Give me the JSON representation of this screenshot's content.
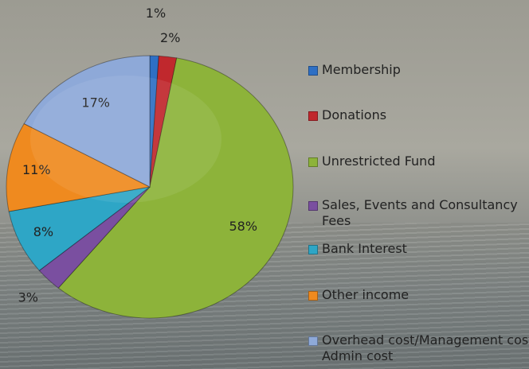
{
  "chart_data": {
    "type": "pie",
    "categories": [
      "Membership",
      "Donations",
      "Unrestricted Fund",
      "Sales, Events and Consultancy Fees",
      "Bank Interest",
      "Other income",
      "Overhead cost/Management cost/ Admin cost"
    ],
    "values": [
      1,
      2,
      58,
      3,
      8,
      11,
      17
    ],
    "value_labels": [
      "1%",
      "2%",
      "58%",
      "3%",
      "8%",
      "11%",
      "17%"
    ],
    "colors": [
      "#2e6fc4",
      "#c0282d",
      "#8db33a",
      "#7a4fa0",
      "#2ea6c6",
      "#ef8a1f",
      "#8ea9d8"
    ],
    "legend": "right"
  }
}
